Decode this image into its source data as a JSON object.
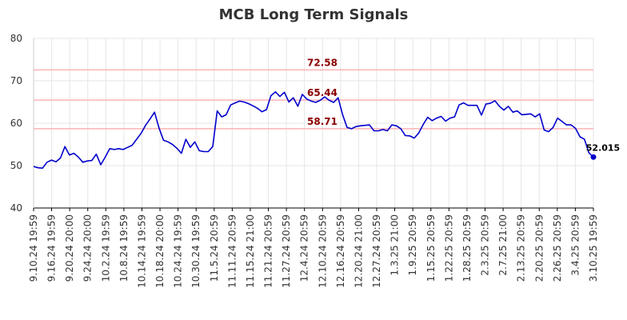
{
  "chart_data": {
    "type": "line",
    "title": "MCB Long Term Signals",
    "ylim": [
      40,
      80
    ],
    "yticks": [
      40,
      50,
      60,
      70,
      80
    ],
    "grid": true,
    "x_tick_labels": [
      "9.10.24 19:59",
      "9.16.24 19:59",
      "9.20.24 20:00",
      "9.24.24 20:00",
      "10.2.24 19:59",
      "10.8.24 19:59",
      "10.14.24 19:59",
      "10.18.24 20:00",
      "10.24.24 19:59",
      "10.30.24 19:59",
      "11.5.24 20:59",
      "11.11.24 20:59",
      "11.15.24 21:00",
      "11.21.24 20:59",
      "11.27.24 20:59",
      "12.4.24 20:59",
      "12.10.24 20:59",
      "12.16.24 20:59",
      "12.20.24 21:00",
      "12.27.24 20:59",
      "1.3.25 21:00",
      "1.9.25 20:59",
      "1.15.25 20:59",
      "1.22.25 20:59",
      "1.28.25 20:59",
      "2.3.25 20:59",
      "2.7.25 21:00",
      "2.13.25 20:59",
      "2.20.25 20:59",
      "2.26.25 20:59",
      "3.4.25 20:59",
      "3.10.25 19:59"
    ],
    "reference_lines": [
      {
        "value": 72.58,
        "label": "72.58",
        "color": "#ffb3b3"
      },
      {
        "value": 65.44,
        "label": "65.44",
        "color": "#ffb3b3"
      },
      {
        "value": 58.71,
        "label": "58.71",
        "color": "#ffb3b3"
      }
    ],
    "series": [
      {
        "color": "#0000cc",
        "values": [
          49.8,
          49.5,
          49.4,
          50.8,
          51.3,
          50.9,
          51.8,
          54.5,
          52.5,
          52.9,
          52.0,
          50.8,
          51.1,
          51.2,
          52.7,
          50.2,
          52.0,
          54.0,
          53.8,
          54.0,
          53.8,
          54.3,
          54.8,
          56.2,
          57.6,
          59.5,
          61.0,
          62.6,
          58.9,
          56.0,
          55.6,
          55.0,
          54.1,
          52.9,
          56.2,
          54.3,
          55.6,
          53.5,
          53.3,
          53.3,
          54.5,
          62.9,
          61.5,
          62.0,
          64.3,
          64.8,
          65.2,
          65.0,
          64.6,
          64.1,
          63.5,
          62.7,
          63.2,
          66.5,
          67.4,
          66.3,
          67.3,
          65.0,
          66.0,
          64.0,
          66.8,
          65.7,
          65.2,
          64.9,
          65.4,
          66.2,
          65.4,
          64.9,
          66.0,
          62.0,
          59.0,
          58.7,
          59.2,
          59.4,
          59.5,
          59.6,
          58.2,
          58.2,
          58.5,
          58.2,
          59.6,
          59.4,
          58.7,
          57.1,
          57.0,
          56.5,
          57.7,
          59.7,
          61.4,
          60.6,
          61.2,
          61.6,
          60.5,
          61.2,
          61.5,
          64.3,
          64.8,
          64.2,
          64.2,
          64.2,
          61.9,
          64.5,
          64.7,
          65.3,
          64.0,
          63.1,
          64.0,
          62.6,
          62.9,
          62.0,
          62.1,
          62.2,
          61.5,
          62.2,
          58.4,
          58.0,
          59.0,
          61.2,
          60.4,
          59.6,
          59.6,
          58.8,
          56.8,
          56.2,
          53.0,
          52.015
        ]
      }
    ],
    "last_value_label": "52.015"
  }
}
